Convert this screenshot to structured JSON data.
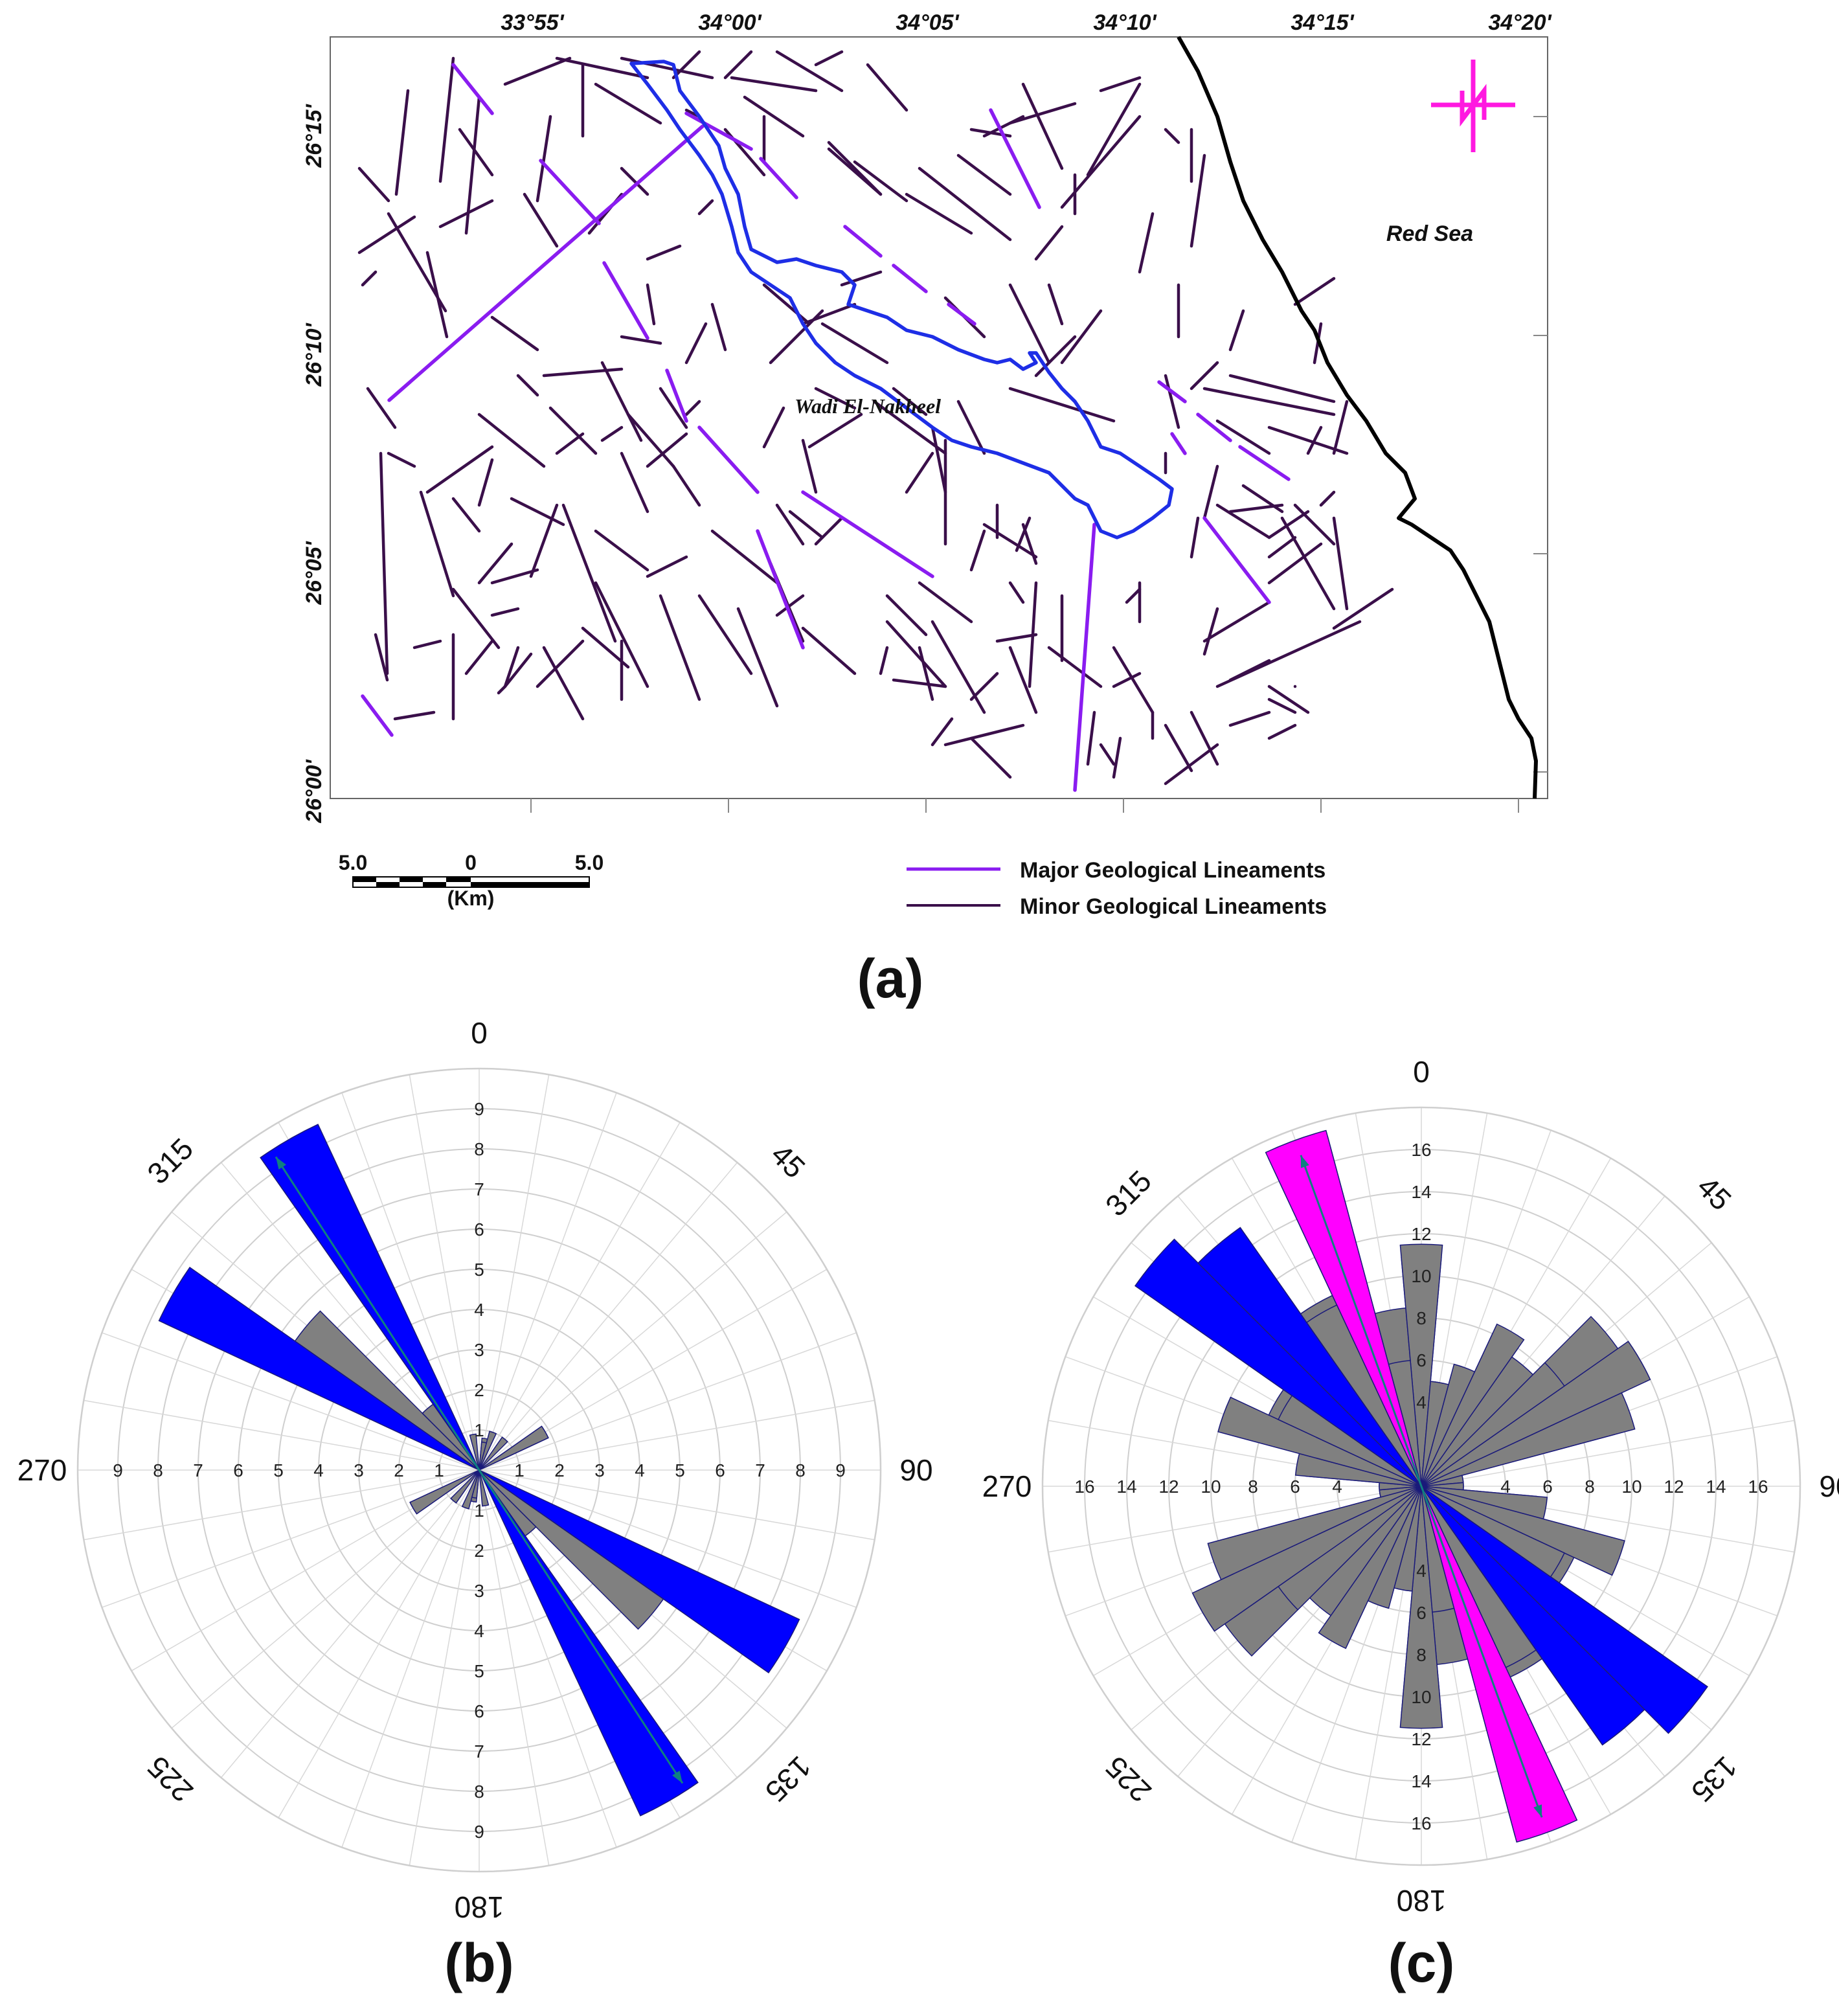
{
  "figure": {
    "panel_a": {
      "label": "(a)",
      "lon_labels": [
        "33°55'",
        "34°00'",
        "34°05'",
        "34°10'",
        "34°15'",
        "34°20'"
      ],
      "lat_labels": [
        "26°15'",
        "26°10'",
        "26°05'",
        "26°00'"
      ],
      "sea_label": "Red Sea",
      "wadi_label": "Wadi El-Nakheel",
      "north_arrow": "north-arrow-icon",
      "scale_bar": {
        "left": "5.0",
        "mid": "0",
        "right": "5.0",
        "unit": "(Km)"
      },
      "legend": [
        {
          "label": "Major Geological Lineaments",
          "color": "#8a1cf0"
        },
        {
          "label": "Minor Geological Lineaments",
          "color": "#3a0f4a"
        }
      ],
      "colors": {
        "major": "#8a1cf0",
        "minor": "#3a0f4a",
        "wadi": "#1e2ee6",
        "coast": "#000000",
        "north": "#ff19e0"
      }
    },
    "panel_b": {
      "label": "(b)",
      "direction_labels": [
        "0",
        "45",
        "90",
        "135",
        "180",
        "225",
        "270",
        "315"
      ],
      "radial_ticks": [
        "1",
        "2",
        "3",
        "4",
        "5",
        "6",
        "7",
        "8",
        "9"
      ],
      "mean_direction_deg": 327
    },
    "panel_c": {
      "label": "(c)",
      "direction_labels": [
        "0",
        "45",
        "90",
        "135",
        "180",
        "225",
        "270",
        "315"
      ],
      "radial_ticks": [
        "4",
        "6",
        "8",
        "10",
        "12",
        "14",
        "16"
      ],
      "mean_direction_deg": 340
    }
  },
  "chart_data": [
    {
      "type": "rose",
      "panel": "(b)",
      "max_radius": 10,
      "bin_width_deg": 10,
      "mean_direction_deg": 327,
      "petals": [
        {
          "dir": 330,
          "value": 9.5,
          "color": "#0000ff"
        },
        {
          "dir": 300,
          "value": 8.8,
          "color": "#0000ff"
        },
        {
          "dir": 310,
          "value": 5.6,
          "color": "#808080"
        },
        {
          "dir": 320,
          "value": 2.0,
          "color": "#808080"
        },
        {
          "dir": 60,
          "value": 1.9,
          "color": "#808080"
        },
        {
          "dir": 40,
          "value": 1.0,
          "color": "#808080"
        },
        {
          "dir": 10,
          "value": 0.8,
          "color": "#808080"
        },
        {
          "dir": 350,
          "value": 0.9,
          "color": "#808080"
        },
        {
          "dir": 20,
          "value": 0.6,
          "color": "#808080"
        },
        {
          "dir": 240,
          "value": 1.9,
          "color": "#808080"
        },
        {
          "dir": 200,
          "value": 1.0,
          "color": "#808080"
        },
        {
          "dir": 190,
          "value": 0.7,
          "color": "#808080"
        }
      ]
    },
    {
      "type": "rose",
      "panel": "(c)",
      "max_radius": 18,
      "bin_width_deg": 10,
      "mean_direction_deg": 340,
      "petals": [
        {
          "dir": 340,
          "value": 17.2,
          "color": "#ff00ff"
        },
        {
          "dir": 320,
          "value": 15.0,
          "color": "#0000ff"
        },
        {
          "dir": 310,
          "value": 14.0,
          "color": "#0000ff"
        },
        {
          "dir": 0,
          "value": 10.9,
          "color": "#808080"
        },
        {
          "dir": 10,
          "value": 5.0,
          "color": "#808080"
        },
        {
          "dir": 20,
          "value": 5.5,
          "color": "#808080"
        },
        {
          "dir": 30,
          "value": 8.0,
          "color": "#808080"
        },
        {
          "dir": 40,
          "value": 6.5,
          "color": "#808080"
        },
        {
          "dir": 50,
          "value": 11.4,
          "color": "#808080"
        },
        {
          "dir": 60,
          "value": 9.7,
          "color": "#808080"
        },
        {
          "dir": 70,
          "value": 9.5,
          "color": "#808080"
        },
        {
          "dir": 80,
          "value": 2.0,
          "color": "#808080"
        },
        {
          "dir": 90,
          "value": 2.0,
          "color": "#808080"
        },
        {
          "dir": 100,
          "value": 5.5,
          "color": "#808080"
        },
        {
          "dir": 110,
          "value": 6.0,
          "color": "#808080"
        },
        {
          "dir": 120,
          "value": 8.0,
          "color": "#808080"
        },
        {
          "dir": 130,
          "value": 16.6,
          "color": "#0000ff"
        },
        {
          "dir": 140,
          "value": 15.0,
          "color": "#0000ff"
        },
        {
          "dir": 150,
          "value": 10.0,
          "color": "#808080"
        },
        {
          "dir": 160,
          "value": 17.5,
          "color": "#ff00ff"
        },
        {
          "dir": 170,
          "value": 8.5,
          "color": "#808080"
        },
        {
          "dir": 180,
          "value": 11.5,
          "color": "#808080"
        },
        {
          "dir": 190,
          "value": 5.0,
          "color": "#808080"
        },
        {
          "dir": 200,
          "value": 6.0,
          "color": "#808080"
        },
        {
          "dir": 210,
          "value": 8.5,
          "color": "#808080"
        },
        {
          "dir": 220,
          "value": 7.5,
          "color": "#808080"
        },
        {
          "dir": 230,
          "value": 8.3,
          "color": "#808080"
        },
        {
          "dir": 240,
          "value": 12.0,
          "color": "#808080"
        },
        {
          "dir": 250,
          "value": 10.5,
          "color": "#808080"
        },
        {
          "dir": 260,
          "value": 2.0,
          "color": "#808080"
        },
        {
          "dir": 270,
          "value": 2.0,
          "color": "#808080"
        },
        {
          "dir": 280,
          "value": 6.0,
          "color": "#808080"
        },
        {
          "dir": 290,
          "value": 10.0,
          "color": "#808080"
        },
        {
          "dir": 300,
          "value": 7.5,
          "color": "#808080"
        },
        {
          "dir": 330,
          "value": 9.5,
          "color": "#808080"
        },
        {
          "dir": 350,
          "value": 6.0,
          "color": "#808080"
        }
      ]
    }
  ]
}
